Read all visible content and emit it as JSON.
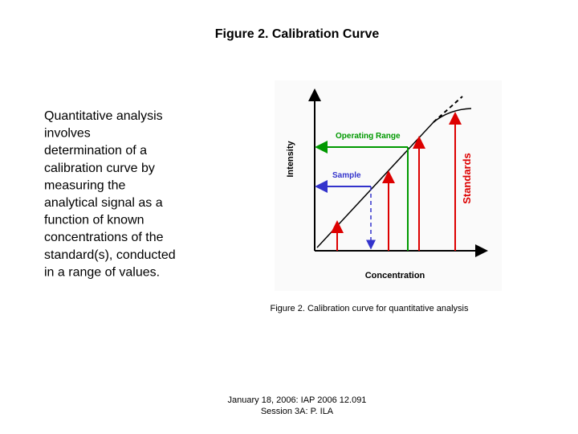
{
  "slide": {
    "title": "Figure 2. Calibration Curve",
    "body_lines": [
      "Quantitative analysis",
      "involves",
      "determination of a",
      "calibration curve by",
      "measuring the",
      "analytical signal as a",
      "function of known",
      "concentrations of the",
      "standard(s), conducted",
      "in a range of values."
    ],
    "figure": {
      "y_label": "Intensity",
      "x_label": "Concentration",
      "operating_range": "Operating Range",
      "sample": "Sample",
      "standards": "Standards"
    },
    "caption": "Figure 2. Calibration curve for quantitative analysis",
    "footer": [
      "January 18, 2006: IAP 2006 12.091",
      "Session 3A: P. ILA"
    ]
  }
}
